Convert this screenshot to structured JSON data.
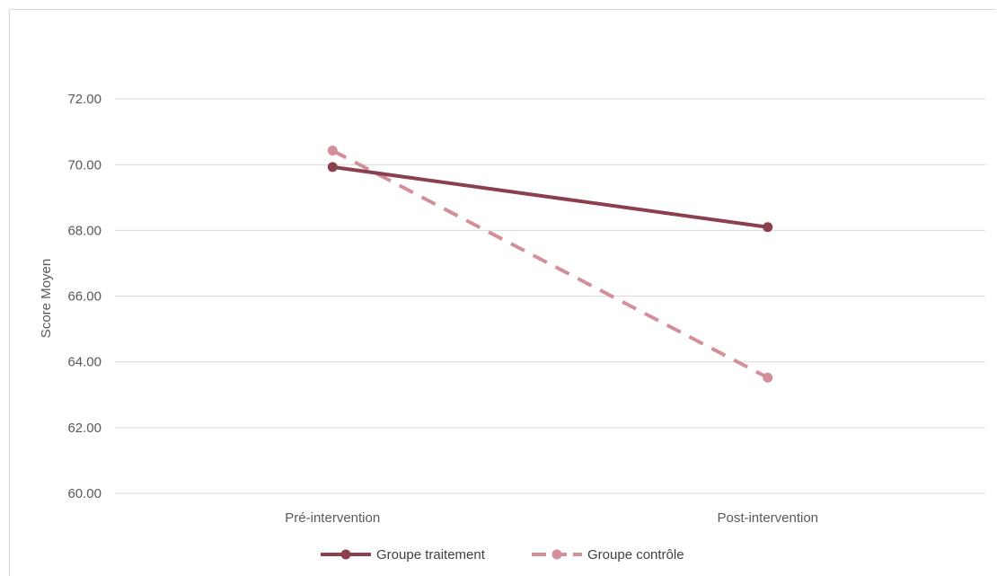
{
  "chart_data": {
    "type": "line",
    "title": "",
    "xlabel": "",
    "ylabel": "Score Moyen",
    "categories": [
      "Pré-intervention",
      "Post-intervention"
    ],
    "ylim": [
      60,
      74
    ],
    "yticks": [
      "60.00",
      "62.00",
      "64.00",
      "66.00",
      "68.00",
      "70.00",
      "72.00"
    ],
    "grid": true,
    "legend_position": "bottom",
    "series": [
      {
        "name": "Groupe traitement",
        "values": [
          69.93,
          68.1
        ],
        "color": "#8b3f4f",
        "dash": "solid"
      },
      {
        "name": "Groupe contrôle",
        "values": [
          70.43,
          63.52
        ],
        "color": "#d4909a",
        "dash": "dashed"
      }
    ]
  }
}
